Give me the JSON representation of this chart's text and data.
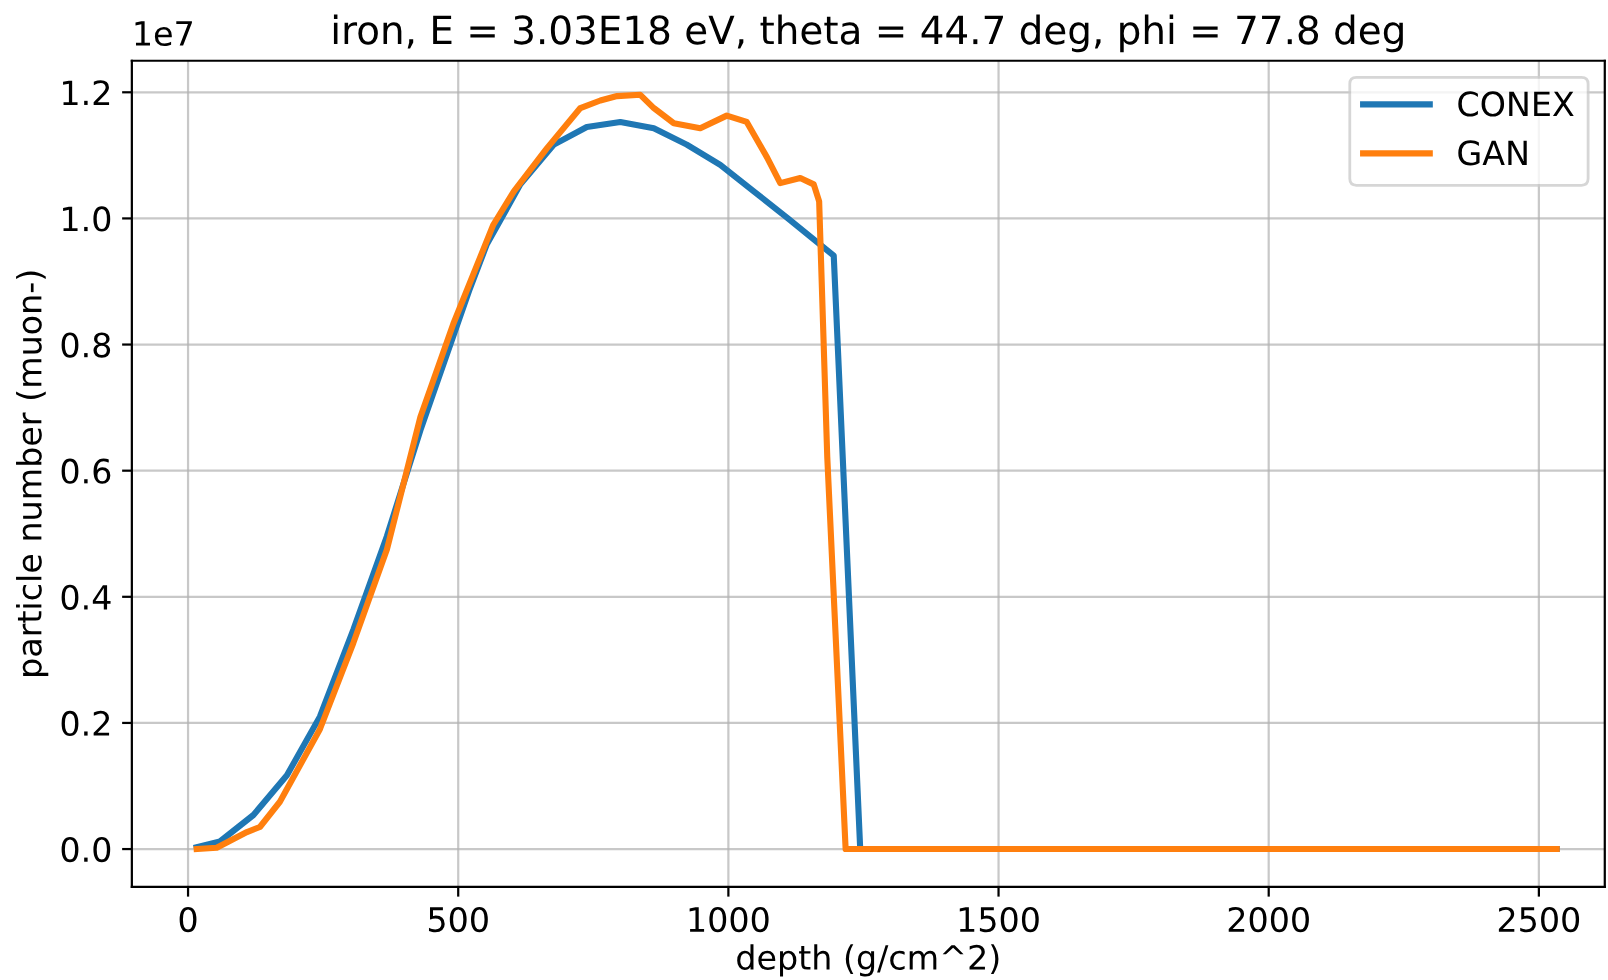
{
  "chart_data": {
    "type": "line",
    "title": "iron, E = 3.03E18 eV, theta = 44.7 deg, phi = 77.8 deg",
    "xlabel": "depth (g/cm^2)",
    "ylabel": "particle number (muon-)",
    "annotations": [
      "1e7"
    ],
    "xlim": [
      -104,
      2622
    ],
    "xticks": [
      0,
      500,
      1000,
      1500,
      2000,
      2500
    ],
    "ylim": [
      -0.06,
      1.25
    ],
    "yticks": [
      {
        "value": 0,
        "label": "0.0"
      },
      {
        "value": 0.2,
        "label": "0.2"
      },
      {
        "value": 0.4,
        "label": "0.4"
      },
      {
        "value": 0.6,
        "label": "0.6"
      },
      {
        "value": 0.8,
        "label": "0.8"
      },
      {
        "value": 1.0,
        "label": "1.0"
      },
      {
        "value": 1.2,
        "label": "1.2"
      }
    ],
    "grid": true,
    "legend": "top right",
    "marker": "none",
    "line_style": "solid",
    "series": [
      {
        "name": "CONEX",
        "color": "#1f77b4",
        "x": [
          16,
          59,
          121,
          183,
          244,
          306,
          368,
          430,
          520,
          553,
          615,
          677,
          738,
          800,
          862,
          923,
          985,
          1047,
          1109,
          1195,
          1244,
          2533
        ],
        "values": [
          0.003,
          0.012,
          0.054,
          0.117,
          0.21,
          0.348,
          0.496,
          0.664,
          0.885,
          0.959,
          1.054,
          1.117,
          1.145,
          1.153,
          1.143,
          1.117,
          1.085,
          1.043,
          1.001,
          0.941,
          0,
          0
        ]
      },
      {
        "name": "GAN",
        "color": "#ff7f0e",
        "x": [
          16,
          53,
          109,
          133,
          170,
          244,
          306,
          368,
          430,
          491,
          565,
          603,
          664,
          726,
          763,
          794,
          837,
          862,
          899,
          948,
          997,
          1034,
          1072,
          1096,
          1133,
          1158,
          1168,
          1183,
          1217,
          2533
        ],
        "values": [
          0,
          0.002,
          0.027,
          0.035,
          0.075,
          0.19,
          0.327,
          0.475,
          0.685,
          0.833,
          0.99,
          1.043,
          1.111,
          1.175,
          1.187,
          1.194,
          1.196,
          1.175,
          1.151,
          1.143,
          1.163,
          1.153,
          1.096,
          1.056,
          1.064,
          1.054,
          1.027,
          0.622,
          0,
          0
        ]
      }
    ]
  }
}
